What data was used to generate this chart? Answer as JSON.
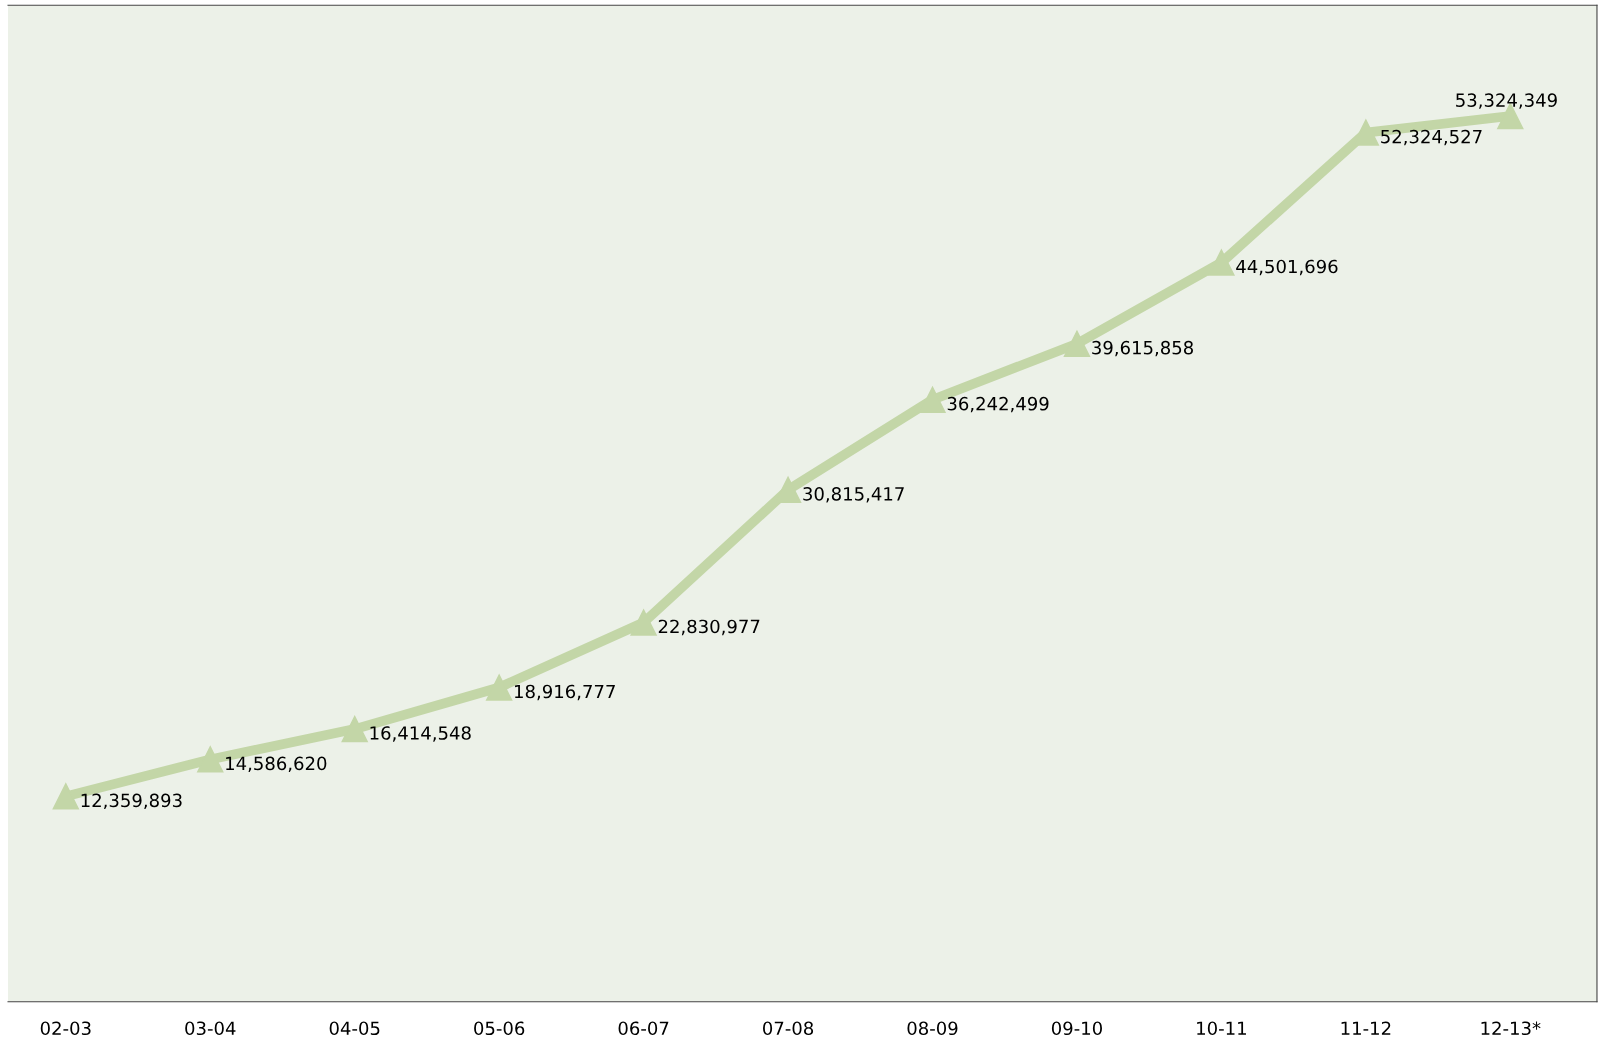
{
  "chart_data": {
    "type": "line",
    "categories": [
      "02-03",
      "03-04",
      "04-05",
      "05-06",
      "06-07",
      "07-08",
      "08-09",
      "09-10",
      "10-11",
      "11-12",
      "12-13*"
    ],
    "series": [
      {
        "color": "#c3d6a7",
        "values": [
          12359893,
          14586620,
          16414548,
          18916777,
          22830977,
          30815417,
          36242499,
          39615858,
          44501696,
          52324527,
          53324349
        ],
        "value_labels": [
          "12,359,893",
          "14,586,620",
          "16,414,548",
          "18,916,777",
          "22,830,977",
          "30,815,417",
          "36,242,499",
          "39,615,858",
          "44,501,696",
          "52,324,527",
          "53,324,349"
        ]
      }
    ],
    "marker": "triangle",
    "line_style": "solid",
    "tick_labels": "x",
    "grid": false
  }
}
